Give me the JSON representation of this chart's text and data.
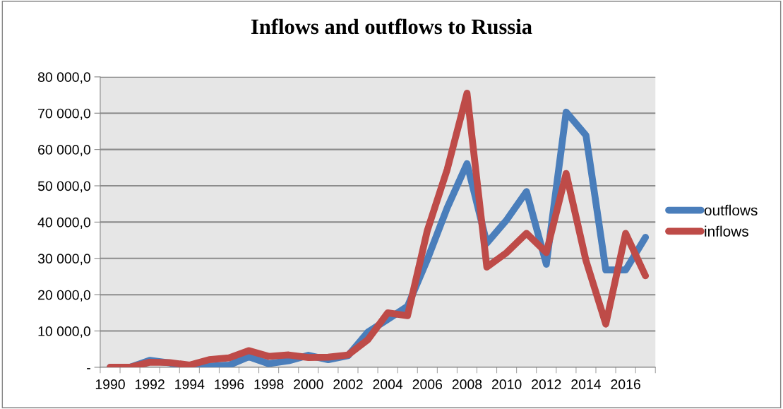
{
  "chart_data": {
    "type": "line",
    "title": "Inflows and outflows to Russia",
    "categories": [
      "1990",
      null,
      "1992",
      null,
      "1994",
      null,
      "1996",
      null,
      "1998",
      null,
      "2000",
      null,
      "2002",
      null,
      "2004",
      null,
      "2006",
      null,
      "2008",
      null,
      "2010",
      null,
      "2012",
      null,
      "2014",
      null,
      "2016",
      null
    ],
    "series": [
      {
        "name": "outflows",
        "color": "#4a7ebb",
        "values": [
          0,
          0,
          1900,
          1200,
          0,
          300,
          600,
          2900,
          1000,
          1800,
          3300,
          2100,
          3200,
          9700,
          13200,
          16800,
          29700,
          43900,
          56100,
          34200,
          40600,
          48400,
          28400,
          70300,
          63900,
          26800,
          26800,
          35800
        ]
      },
      {
        "name": "inflows",
        "color": "#be4b48",
        "values": [
          0,
          0,
          1400,
          1300,
          600,
          2100,
          2600,
          4600,
          3000,
          3400,
          2700,
          2800,
          3400,
          7600,
          15000,
          14200,
          37700,
          54500,
          75500,
          27600,
          31600,
          36900,
          31600,
          53400,
          29400,
          11900,
          36900,
          25200
        ]
      }
    ],
    "ylim": [
      0,
      80000
    ],
    "yticks": [
      {
        "value": 0,
        "label": "-"
      },
      {
        "value": 10000,
        "label": "10 000,0"
      },
      {
        "value": 20000,
        "label": "20 000,0"
      },
      {
        "value": 30000,
        "label": "30 000,0"
      },
      {
        "value": 40000,
        "label": "40 000,0"
      },
      {
        "value": 50000,
        "label": "50 000,0"
      },
      {
        "value": 60000,
        "label": "60 000,0"
      },
      {
        "value": 70000,
        "label": "70 000,0"
      },
      {
        "value": 80000,
        "label": "80 000,0"
      }
    ],
    "grid": "y",
    "legend": "right",
    "marker": "none",
    "line_style": "solid"
  }
}
